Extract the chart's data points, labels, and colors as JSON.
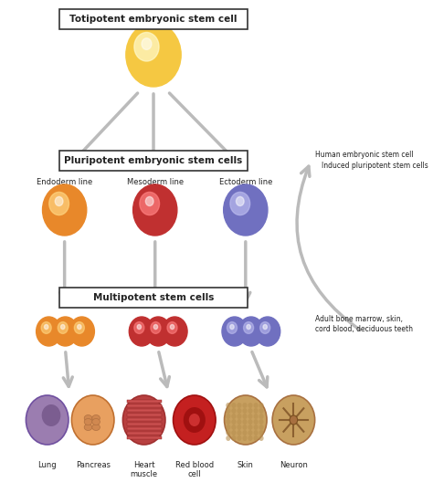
{
  "bg_color": "#ffffff",
  "title_box_text": "Totipotent embryonic stem cell",
  "pluripotent_box_text": "Pluripotent embryonic stem cells",
  "multipotent_box_text": "Multipotent stem cells",
  "endoderm_label": "Endoderm line",
  "mesoderm_label": "Mesoderm line",
  "ectoderm_label": "Ectoderm line",
  "side_label1": "Human embryonic stem cell",
  "side_label2": "Induced pluripotent stem cells",
  "side_label3": "Adult bone marrow, skin,\ncord blood, deciduous teeth",
  "final_labels": [
    "Lung",
    "Pancreas",
    "Heart\nmuscle",
    "Red blood\ncell",
    "Skin",
    "Neuron"
  ],
  "totipotent_color": "#F5C842",
  "totipotent_highlight": "#FFFACD",
  "endoderm_color": "#E8882A",
  "endoderm_highlight": "#FFD580",
  "mesoderm_color": "#C03030",
  "mesoderm_highlight": "#FF8080",
  "ectoderm_color": "#7070C0",
  "ectoderm_highlight": "#BBBBEE",
  "multi_orange_color": "#E8882A",
  "multi_red_color": "#C03030",
  "multi_blue_color": "#7070C0",
  "arrow_color": "#BBBBBB",
  "box_edge_color": "#333333",
  "text_color": "#222222",
  "lung_color": "#9060A0",
  "pancreas_color": "#E8A060",
  "heartmuscle_color": "#C04040",
  "redblood_color": "#C02020",
  "skin_color": "#D4A060",
  "neuron_color": "#C8A060"
}
